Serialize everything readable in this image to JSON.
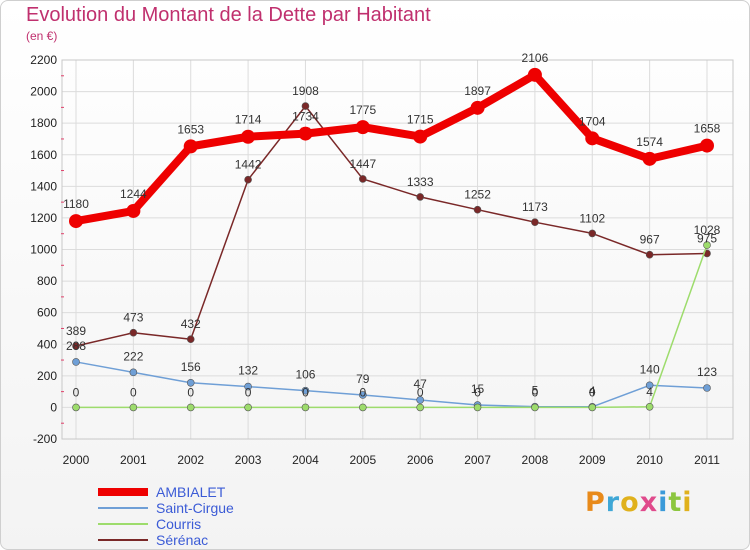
{
  "title": "Evolution du Montant de la Dette par Habitant",
  "unit": "(en €)",
  "logo": {
    "text": "Proxiti",
    "colors": [
      "#e88a1a",
      "#3fa7d6",
      "#e0b11c",
      "#e04a8c",
      "#3a9ad9",
      "#8cc63f",
      "#e0b11c"
    ]
  },
  "chart_data": {
    "type": "line",
    "x": [
      "2000",
      "2001",
      "2002",
      "2003",
      "2004",
      "2005",
      "2006",
      "2007",
      "2008",
      "2009",
      "2010",
      "2011"
    ],
    "ylim": [
      -200,
      2200
    ],
    "yticks": [
      "-200",
      "0",
      "200",
      "400",
      "600",
      "800",
      "1000",
      "1200",
      "1400",
      "1600",
      "1800",
      "2000",
      "2200"
    ],
    "grid": true,
    "legend_position": "bottom-left",
    "series": [
      {
        "name": "AMBIALET",
        "color": "#ee0000",
        "values": [
          1180,
          1244,
          1653,
          1714,
          1734,
          1775,
          1715,
          1897,
          2106,
          1704,
          1574,
          1658
        ],
        "labels": [
          "1180",
          "1244",
          "1653",
          "1714",
          "1734",
          "1775",
          "1715",
          "1897",
          "2106",
          "1704",
          "1574",
          "1658"
        ]
      },
      {
        "name": "Saint-Cirgue",
        "color": "#6f9fd6",
        "values": [
          288,
          222,
          156,
          132,
          106,
          79,
          47,
          15,
          5,
          4,
          140,
          123
        ],
        "labels": [
          "288",
          "222",
          "156",
          "132",
          "106",
          "79",
          "47",
          "15",
          "5",
          "4",
          "140",
          "123"
        ]
      },
      {
        "name": "Courris",
        "color": "#9ddc6c",
        "values": [
          0,
          0,
          0,
          0,
          0,
          0,
          0,
          0,
          0,
          0,
          4,
          1028
        ],
        "labels": [
          "0",
          "0",
          "0",
          "0",
          "0",
          "0",
          "0",
          "0",
          "0",
          "0",
          "4",
          "1028"
        ]
      },
      {
        "name": "Sérénac",
        "color": "#7a2828",
        "values": [
          389,
          473,
          432,
          1442,
          1908,
          1447,
          1333,
          1252,
          1173,
          1102,
          967,
          975
        ],
        "labels": [
          "389",
          "473",
          "432",
          "1442",
          "1908",
          "1447",
          "1333",
          "1252",
          "1173",
          "1102",
          "967",
          "975"
        ]
      }
    ]
  }
}
